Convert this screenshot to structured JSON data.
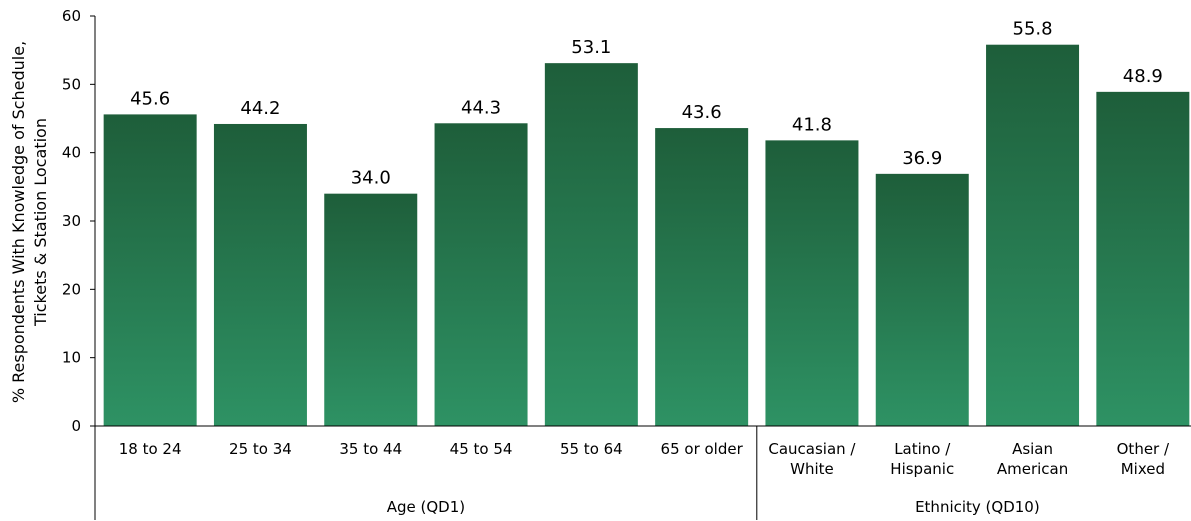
{
  "chart_data": {
    "type": "bar",
    "ylabel_lines": [
      "% Respondents With Knowledge of Schedule,",
      "Tickets & Station Location"
    ],
    "ylim": [
      0,
      60
    ],
    "yticks": [
      0,
      10,
      20,
      30,
      40,
      50,
      60
    ],
    "categories": [
      {
        "lines": [
          "18 to 24"
        ],
        "value": 45.6,
        "label": "45.6"
      },
      {
        "lines": [
          "25 to 34"
        ],
        "value": 44.2,
        "label": "44.2"
      },
      {
        "lines": [
          "35 to 44"
        ],
        "value": 34.0,
        "label": "34.0"
      },
      {
        "lines": [
          "45 to 54"
        ],
        "value": 44.3,
        "label": "44.3"
      },
      {
        "lines": [
          "55 to 64"
        ],
        "value": 53.1,
        "label": "53.1"
      },
      {
        "lines": [
          "65 or older"
        ],
        "value": 43.6,
        "label": "43.6"
      },
      {
        "lines": [
          "Caucasian /",
          "White"
        ],
        "value": 41.8,
        "label": "41.8"
      },
      {
        "lines": [
          "Latino /",
          "Hispanic"
        ],
        "value": 36.9,
        "label": "36.9"
      },
      {
        "lines": [
          "Asian",
          "American"
        ],
        "value": 55.8,
        "label": "55.8"
      },
      {
        "lines": [
          "Other /",
          "Mixed"
        ],
        "value": 48.9,
        "label": "48.9"
      }
    ],
    "groups": [
      {
        "label": "Age (QD1)",
        "start": 0,
        "end": 5
      },
      {
        "label": "Ethnicity (QD10)",
        "start": 6,
        "end": 9
      }
    ],
    "colors": {
      "bar_top": "#1e5e3a",
      "bar_bottom": "#2e9264"
    }
  }
}
